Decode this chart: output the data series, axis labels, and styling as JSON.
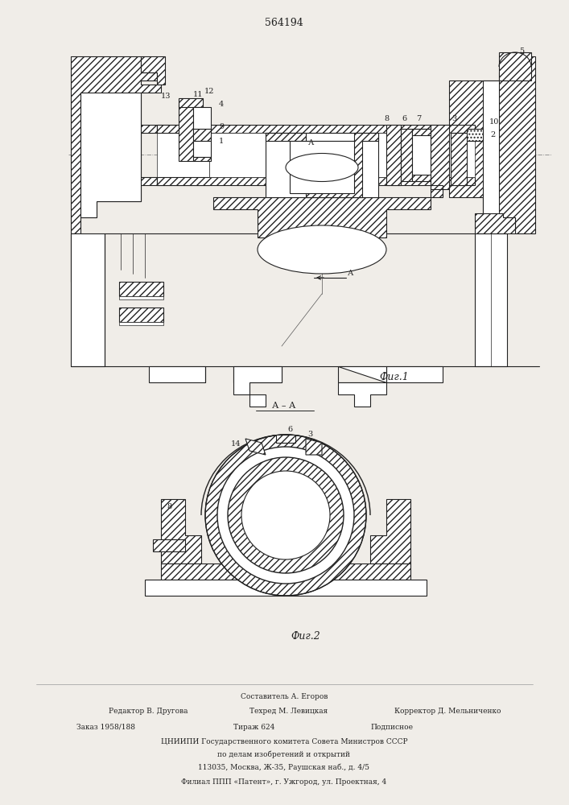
{
  "patent_number": "564194",
  "fig1_label": "Фиг.1",
  "fig2_label": "Фиг.2",
  "section_label": "А – А",
  "footer_composer": "Составитель А. Егоров",
  "footer_editor": "Редактор В. Другова",
  "footer_techred": "Техред М. Левицкая",
  "footer_corrector": "Корректор Д. Мельниченко",
  "footer_order": "Заказ 1958/188",
  "footer_tirazh": "Тираж 624",
  "footer_podpisnoe": "Подписное",
  "footer_tsniipi": "ЦНИИПИ Государственного комитета Совета Министров СССР",
  "footer_delam": "по делам изобретений и открытий",
  "footer_addr": "113035, Москва, Ж-35, Раушская наб., д. 4/5",
  "footer_filial": "Филиал ППП «Патент», г. Ужгород, ул. Проектная, 4",
  "bg_color": "#f0ede8",
  "line_color": "#222222"
}
